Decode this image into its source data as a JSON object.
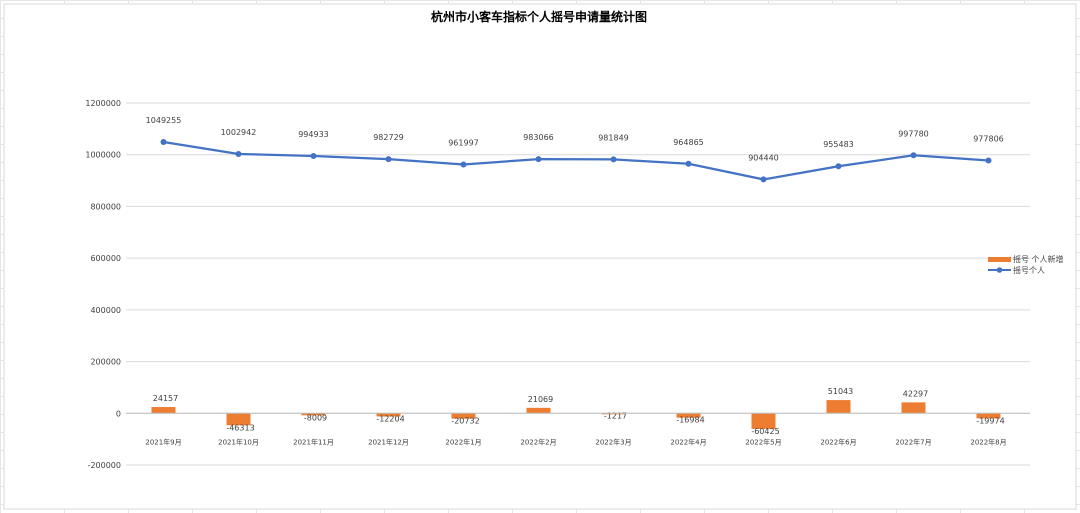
{
  "chart_data": {
    "type": "bar+line",
    "title": "杭州市小客车指标个人摇号申请量统计图",
    "categories": [
      "2021年9月",
      "2021年10月",
      "2021年11月",
      "2021年12月",
      "2022年1月",
      "2022年2月",
      "2022年3月",
      "2022年4月",
      "2022年5月",
      "2022年6月",
      "2022年7月",
      "2022年8月"
    ],
    "series": [
      {
        "name": "摇号 个人新增",
        "type": "bar",
        "color": "#ED7D31",
        "values": [
          24157,
          -46313,
          -8009,
          -12204,
          -20732,
          21069,
          -1217,
          -16984,
          -60425,
          51043,
          42297,
          -19974
        ],
        "labels": [
          "24157",
          "-46313",
          "-8009",
          "-12204",
          "-20732",
          "21069",
          "-1217",
          "-16984",
          "-60425",
          "51043",
          "42297",
          "-19974"
        ]
      },
      {
        "name": "摇号个人",
        "type": "line",
        "color": "#4472C4",
        "values": [
          1049255,
          1002942,
          994933,
          982729,
          961997,
          983066,
          981849,
          964865,
          904440,
          955483,
          997780,
          977806
        ],
        "labels": [
          "1049255",
          "1002942",
          "994933",
          "982729",
          "961997",
          "983066",
          "981849",
          "964865",
          "904440",
          "955483",
          "997780",
          "977806"
        ]
      }
    ],
    "yticks": [
      "1200000",
      "1000000",
      "800000",
      "600000",
      "400000",
      "200000",
      "0",
      "-200000"
    ],
    "ylim": [
      -200000,
      1200000
    ],
    "legend_position": "right",
    "grid": true
  }
}
